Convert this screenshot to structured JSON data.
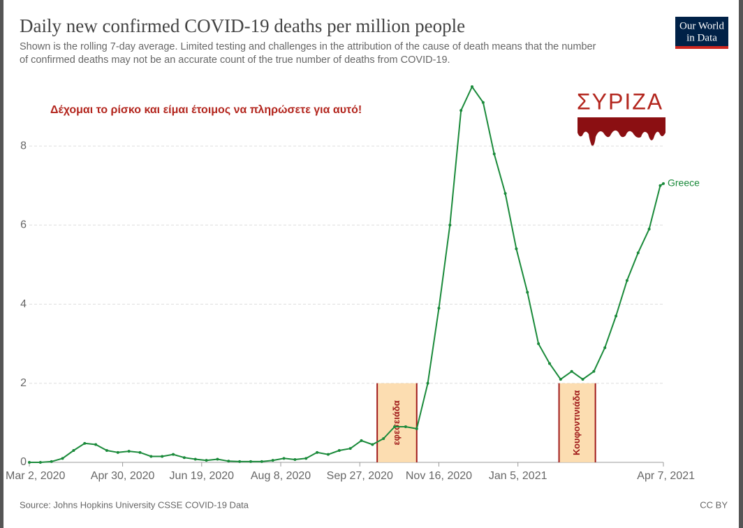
{
  "chart_data": {
    "type": "line",
    "title": "Daily new confirmed COVID-19 deaths per million people",
    "subtitle": [
      "Shown is the rolling 7-day average. Limited testing and challenges in the attribution of the cause of death means that the number",
      "of confirmed deaths may not be an accurate count of the true number of deaths from COVID-19."
    ],
    "source": "Source: Johns Hopkins University CSSE COVID-19 Data",
    "license": "CC BY",
    "logo": [
      "Our World",
      "in Data"
    ],
    "annotation": "Δέχομαι το ρίσκο και είμαι έτοιμος να πληρώσετε για αυτό!",
    "party_logo": "ΣΥΡΙΖΑ",
    "highlights": [
      {
        "label": "εφεσειάδα",
        "x": [
          "2020-10-08",
          "2020-11-02"
        ],
        "y": [
          0,
          2
        ]
      },
      {
        "label": "Κουφοντινιάδα",
        "x": [
          "2021-01-31",
          "2021-02-23"
        ],
        "y": [
          0,
          2
        ]
      }
    ],
    "x": [
      "2020-03-02",
      "2020-03-09",
      "2020-03-16",
      "2020-03-23",
      "2020-03-30",
      "2020-04-06",
      "2020-04-13",
      "2020-04-20",
      "2020-04-27",
      "2020-05-04",
      "2020-05-11",
      "2020-05-18",
      "2020-05-25",
      "2020-06-01",
      "2020-06-08",
      "2020-06-15",
      "2020-06-22",
      "2020-06-29",
      "2020-07-06",
      "2020-07-13",
      "2020-07-20",
      "2020-07-27",
      "2020-08-03",
      "2020-08-10",
      "2020-08-17",
      "2020-08-24",
      "2020-08-31",
      "2020-09-07",
      "2020-09-14",
      "2020-09-21",
      "2020-09-28",
      "2020-10-05",
      "2020-10-12",
      "2020-10-19",
      "2020-10-26",
      "2020-11-02",
      "2020-11-09",
      "2020-11-16",
      "2020-11-23",
      "2020-11-30",
      "2020-12-07",
      "2020-12-14",
      "2020-12-21",
      "2020-12-28",
      "2021-01-04",
      "2021-01-11",
      "2021-01-18",
      "2021-01-25",
      "2021-02-01",
      "2021-02-08",
      "2021-02-15",
      "2021-02-22",
      "2021-03-01",
      "2021-03-08",
      "2021-03-15",
      "2021-03-22",
      "2021-03-29",
      "2021-04-05",
      "2021-04-07"
    ],
    "series": [
      {
        "name": "Greece",
        "color": "#1a8a3a",
        "values": [
          0,
          0,
          0.02,
          0.1,
          0.3,
          0.48,
          0.45,
          0.3,
          0.25,
          0.28,
          0.25,
          0.15,
          0.15,
          0.2,
          0.12,
          0.08,
          0.05,
          0.08,
          0.03,
          0.02,
          0.02,
          0.02,
          0.05,
          0.1,
          0.07,
          0.1,
          0.25,
          0.2,
          0.3,
          0.35,
          0.55,
          0.45,
          0.6,
          0.9,
          0.9,
          0.85,
          2.0,
          3.9,
          6.0,
          8.9,
          9.5,
          9.1,
          7.8,
          6.8,
          5.4,
          4.3,
          3.0,
          2.5,
          2.1,
          2.3,
          2.1,
          2.3,
          2.9,
          3.7,
          4.6,
          5.3,
          5.9,
          7.0,
          7.05
        ]
      }
    ],
    "xlim": [
      "2020-03-02",
      "2021-04-07"
    ],
    "xticks": [
      {
        "value": "2020-03-02",
        "label": "Mar 2, 2020"
      },
      {
        "value": "2020-04-30",
        "label": "Apr 30, 2020"
      },
      {
        "value": "2020-06-19",
        "label": "Jun 19, 2020"
      },
      {
        "value": "2020-08-08",
        "label": "Aug 8, 2020"
      },
      {
        "value": "2020-09-27",
        "label": "Sep 27, 2020"
      },
      {
        "value": "2020-11-16",
        "label": "Nov 16, 2020"
      },
      {
        "value": "2021-01-05",
        "label": "Jan 5, 2021"
      },
      {
        "value": "2021-04-07",
        "label": "Apr 7, 2021"
      }
    ],
    "ylim": [
      0,
      9.75
    ],
    "yticks": [
      0,
      2,
      4,
      6,
      8
    ],
    "grid": true
  }
}
